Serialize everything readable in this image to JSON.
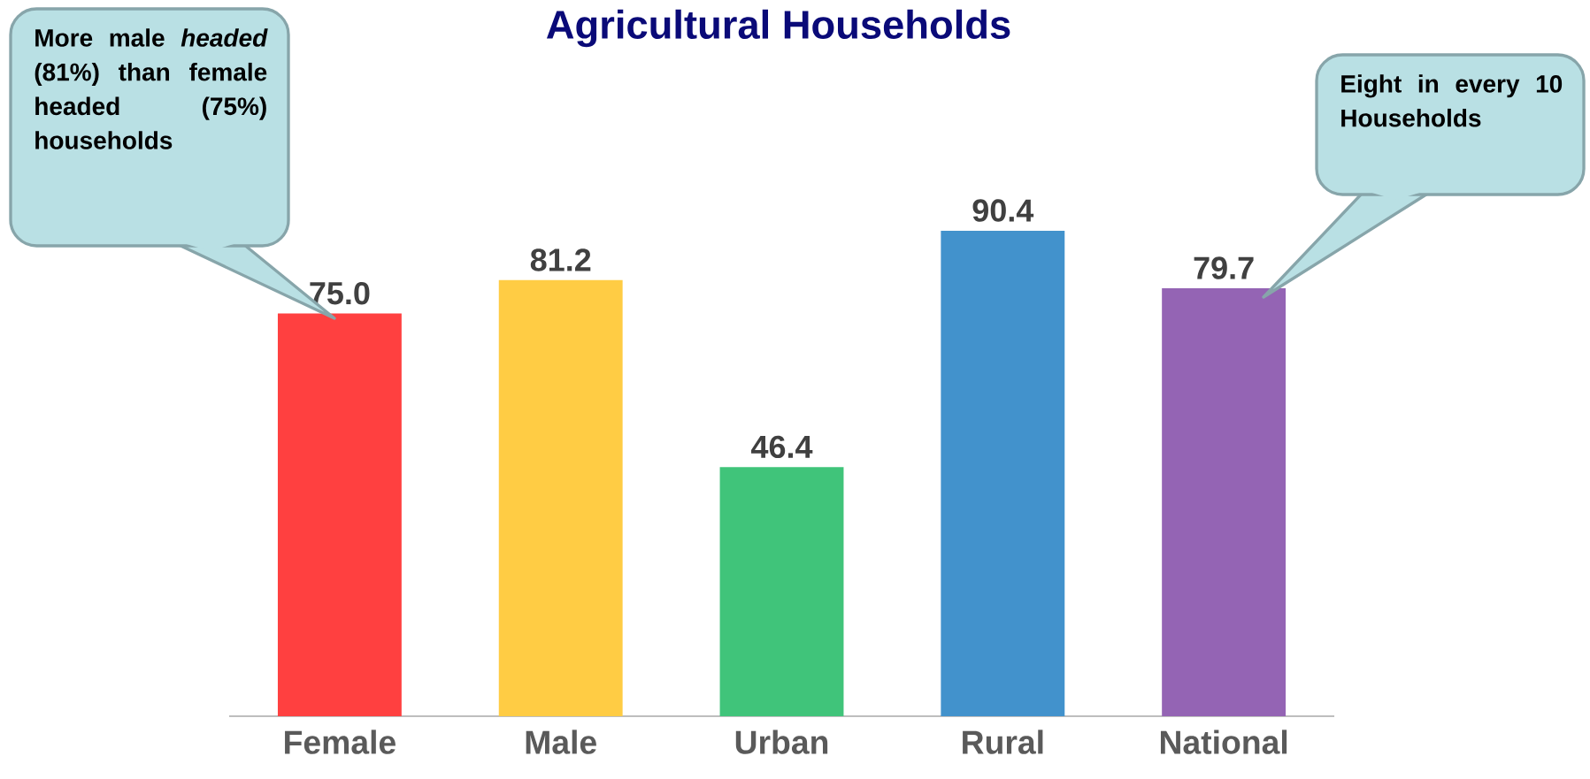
{
  "chart_data": {
    "type": "bar",
    "title": "Agricultural Households",
    "categories": [
      "Female",
      "Male",
      "Urban",
      "Rural",
      "National"
    ],
    "values": [
      75.0,
      81.2,
      46.4,
      90.4,
      79.7
    ],
    "value_labels": [
      "75.0",
      "81.2",
      "46.4",
      "90.4",
      "79.7"
    ],
    "colors": [
      "#ff4040",
      "#ffcc44",
      "#40c47a",
      "#4292cc",
      "#9464b4"
    ],
    "annotations": [
      "More male *headed* (81%) than female headed (75%) households",
      "Eight in every 10 Households"
    ]
  }
}
